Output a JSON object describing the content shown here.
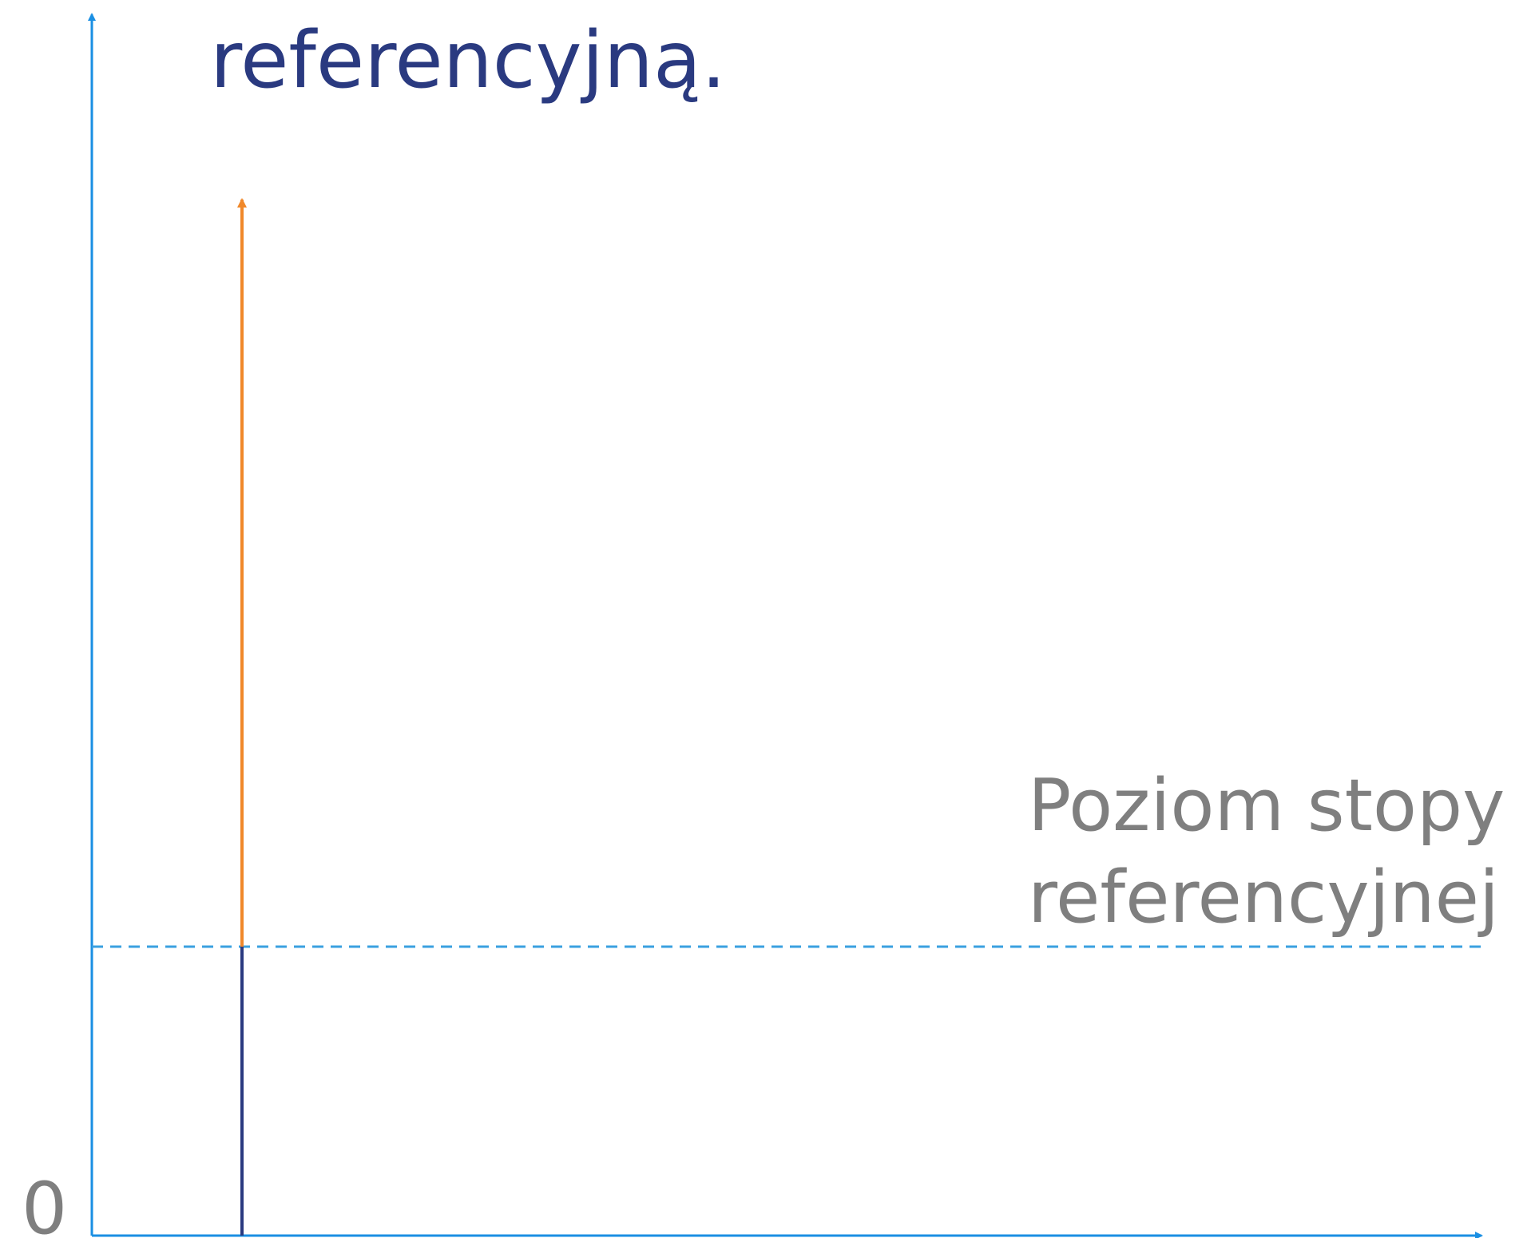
{
  "heading": {
    "line": "referencyjną."
  },
  "axis": {
    "origin_label": "0"
  },
  "reference_label": {
    "lines": [
      "Poziom stopy",
      "referencyjnej"
    ]
  }
}
